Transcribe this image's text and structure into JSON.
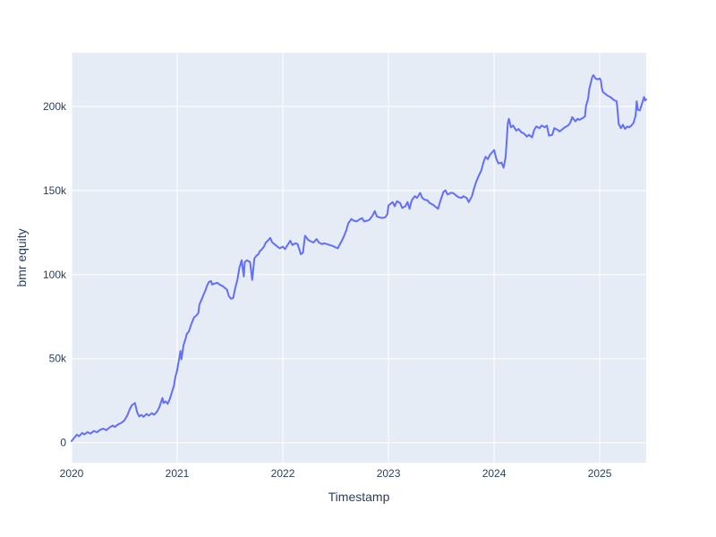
{
  "chart_data": {
    "type": "line",
    "title": "",
    "xlabel": "Timestamp",
    "ylabel": "bmr equity",
    "legend": "none",
    "grid": true,
    "plot_bg_color": "#e5ecf6",
    "paper_color": "#ffffff",
    "grid_color": "#ffffff",
    "text_color": "#2a3f5f",
    "line_color": "#636efa",
    "x_range": [
      2020.0,
      2025.44
    ],
    "y_range": [
      -11900,
      231900
    ],
    "x_ticks": [
      {
        "v": 2020,
        "label": "2020"
      },
      {
        "v": 2021,
        "label": "2021"
      },
      {
        "v": 2022,
        "label": "2022"
      },
      {
        "v": 2023,
        "label": "2023"
      },
      {
        "v": 2024,
        "label": "2024"
      },
      {
        "v": 2025,
        "label": "2025"
      }
    ],
    "y_ticks": [
      {
        "v": 0,
        "label": "0"
      },
      {
        "v": 50000,
        "label": "50k"
      },
      {
        "v": 100000,
        "label": "100k"
      },
      {
        "v": 150000,
        "label": "150k"
      },
      {
        "v": 200000,
        "label": "200k"
      }
    ],
    "series": [
      {
        "name": "bmr equity",
        "points": [
          [
            2020.0,
            1000
          ],
          [
            2020.02,
            2600
          ],
          [
            2020.05,
            4800
          ],
          [
            2020.07,
            3800
          ],
          [
            2020.1,
            5800
          ],
          [
            2020.12,
            4900
          ],
          [
            2020.15,
            6300
          ],
          [
            2020.18,
            5400
          ],
          [
            2020.21,
            7000
          ],
          [
            2020.24,
            6200
          ],
          [
            2020.27,
            7700
          ],
          [
            2020.3,
            8400
          ],
          [
            2020.33,
            7500
          ],
          [
            2020.36,
            9100
          ],
          [
            2020.39,
            10200
          ],
          [
            2020.41,
            9400
          ],
          [
            2020.44,
            10900
          ],
          [
            2020.47,
            11800
          ],
          [
            2020.5,
            13300
          ],
          [
            2020.53,
            16500
          ],
          [
            2020.55,
            19800
          ],
          [
            2020.57,
            22300
          ],
          [
            2020.6,
            23600
          ],
          [
            2020.62,
            18100
          ],
          [
            2020.64,
            15600
          ],
          [
            2020.66,
            16600
          ],
          [
            2020.68,
            15400
          ],
          [
            2020.71,
            17100
          ],
          [
            2020.73,
            16100
          ],
          [
            2020.76,
            17600
          ],
          [
            2020.78,
            16600
          ],
          [
            2020.81,
            18600
          ],
          [
            2020.83,
            21100
          ],
          [
            2020.86,
            26600
          ],
          [
            2020.87,
            23600
          ],
          [
            2020.89,
            24600
          ],
          [
            2020.91,
            23100
          ],
          [
            2020.93,
            26100
          ],
          [
            2020.95,
            30100
          ],
          [
            2020.97,
            34200
          ],
          [
            2020.98,
            38600
          ],
          [
            2021.0,
            43100
          ],
          [
            2021.01,
            47100
          ],
          [
            2021.02,
            50600
          ],
          [
            2021.03,
            54600
          ],
          [
            2021.04,
            49600
          ],
          [
            2021.06,
            58100
          ],
          [
            2021.08,
            62100
          ],
          [
            2021.09,
            64600
          ],
          [
            2021.11,
            66100
          ],
          [
            2021.13,
            70100
          ],
          [
            2021.15,
            73100
          ],
          [
            2021.16,
            74600
          ],
          [
            2021.18,
            75600
          ],
          [
            2021.2,
            77100
          ],
          [
            2021.21,
            82100
          ],
          [
            2021.23,
            85100
          ],
          [
            2021.25,
            88100
          ],
          [
            2021.27,
            91100
          ],
          [
            2021.28,
            93100
          ],
          [
            2021.3,
            95600
          ],
          [
            2021.32,
            96100
          ],
          [
            2021.33,
            94100
          ],
          [
            2021.35,
            94600
          ],
          [
            2021.38,
            95100
          ],
          [
            2021.4,
            94100
          ],
          [
            2021.43,
            93100
          ],
          [
            2021.45,
            92100
          ],
          [
            2021.47,
            91100
          ],
          [
            2021.49,
            87100
          ],
          [
            2021.51,
            85600
          ],
          [
            2021.53,
            86100
          ],
          [
            2021.55,
            92100
          ],
          [
            2021.57,
            97100
          ],
          [
            2021.59,
            104300
          ],
          [
            2021.61,
            108500
          ],
          [
            2021.63,
            98900
          ],
          [
            2021.64,
            107400
          ],
          [
            2021.66,
            108500
          ],
          [
            2021.69,
            107400
          ],
          [
            2021.71,
            96800
          ],
          [
            2021.73,
            109600
          ],
          [
            2021.75,
            111200
          ],
          [
            2021.77,
            112200
          ],
          [
            2021.78,
            113800
          ],
          [
            2021.8,
            114900
          ],
          [
            2021.82,
            116500
          ],
          [
            2021.84,
            119100
          ],
          [
            2021.86,
            120200
          ],
          [
            2021.88,
            121800
          ],
          [
            2021.9,
            119100
          ],
          [
            2021.92,
            118100
          ],
          [
            2021.94,
            117100
          ],
          [
            2021.97,
            115600
          ],
          [
            2022.0,
            116600
          ],
          [
            2022.02,
            115100
          ],
          [
            2022.04,
            117100
          ],
          [
            2022.07,
            120100
          ],
          [
            2022.09,
            117600
          ],
          [
            2022.12,
            118600
          ],
          [
            2022.14,
            118100
          ],
          [
            2022.17,
            112100
          ],
          [
            2022.19,
            113100
          ],
          [
            2022.21,
            123100
          ],
          [
            2022.24,
            120600
          ],
          [
            2022.27,
            119600
          ],
          [
            2022.29,
            119100
          ],
          [
            2022.32,
            121100
          ],
          [
            2022.34,
            119100
          ],
          [
            2022.37,
            118100
          ],
          [
            2022.39,
            118600
          ],
          [
            2022.42,
            118100
          ],
          [
            2022.44,
            117600
          ],
          [
            2022.47,
            117100
          ],
          [
            2022.5,
            116100
          ],
          [
            2022.52,
            115600
          ],
          [
            2022.54,
            118100
          ],
          [
            2022.56,
            120300
          ],
          [
            2022.58,
            123100
          ],
          [
            2022.6,
            126100
          ],
          [
            2022.62,
            130600
          ],
          [
            2022.65,
            133100
          ],
          [
            2022.67,
            132100
          ],
          [
            2022.7,
            131600
          ],
          [
            2022.72,
            132600
          ],
          [
            2022.75,
            133600
          ],
          [
            2022.77,
            131600
          ],
          [
            2022.8,
            132100
          ],
          [
            2022.82,
            132600
          ],
          [
            2022.85,
            135100
          ],
          [
            2022.87,
            137800
          ],
          [
            2022.89,
            134600
          ],
          [
            2022.91,
            134100
          ],
          [
            2022.94,
            133600
          ],
          [
            2022.97,
            134100
          ],
          [
            2022.99,
            136000
          ],
          [
            2023.0,
            141000
          ],
          [
            2023.01,
            141600
          ],
          [
            2023.03,
            142600
          ],
          [
            2023.04,
            143100
          ],
          [
            2023.06,
            140600
          ],
          [
            2023.08,
            143600
          ],
          [
            2023.11,
            142600
          ],
          [
            2023.13,
            139600
          ],
          [
            2023.16,
            140600
          ],
          [
            2023.18,
            143100
          ],
          [
            2023.2,
            139100
          ],
          [
            2023.22,
            144100
          ],
          [
            2023.25,
            146600
          ],
          [
            2023.27,
            145600
          ],
          [
            2023.3,
            148600
          ],
          [
            2023.32,
            145600
          ],
          [
            2023.34,
            144600
          ],
          [
            2023.37,
            144100
          ],
          [
            2023.39,
            142600
          ],
          [
            2023.42,
            141600
          ],
          [
            2023.44,
            140600
          ],
          [
            2023.47,
            139100
          ],
          [
            2023.49,
            143600
          ],
          [
            2023.52,
            149100
          ],
          [
            2023.54,
            150100
          ],
          [
            2023.56,
            147600
          ],
          [
            2023.59,
            148600
          ],
          [
            2023.61,
            148600
          ],
          [
            2023.64,
            147100
          ],
          [
            2023.66,
            146100
          ],
          [
            2023.69,
            145600
          ],
          [
            2023.71,
            146600
          ],
          [
            2023.74,
            145600
          ],
          [
            2023.76,
            143100
          ],
          [
            2023.79,
            146600
          ],
          [
            2023.81,
            151100
          ],
          [
            2023.83,
            155100
          ],
          [
            2023.85,
            158100
          ],
          [
            2023.88,
            162100
          ],
          [
            2023.9,
            167100
          ],
          [
            2023.92,
            170100
          ],
          [
            2023.94,
            168600
          ],
          [
            2023.96,
            171100
          ],
          [
            2023.98,
            172600
          ],
          [
            2024.0,
            174100
          ],
          [
            2024.02,
            169100
          ],
          [
            2024.04,
            166100
          ],
          [
            2024.07,
            166600
          ],
          [
            2024.09,
            163600
          ],
          [
            2024.11,
            170100
          ],
          [
            2024.12,
            180100
          ],
          [
            2024.13,
            190100
          ],
          [
            2024.14,
            192600
          ],
          [
            2024.16,
            187600
          ],
          [
            2024.18,
            188600
          ],
          [
            2024.21,
            185600
          ],
          [
            2024.23,
            186600
          ],
          [
            2024.26,
            184600
          ],
          [
            2024.28,
            184100
          ],
          [
            2024.31,
            182100
          ],
          [
            2024.33,
            183100
          ],
          [
            2024.36,
            181600
          ],
          [
            2024.38,
            186100
          ],
          [
            2024.4,
            188100
          ],
          [
            2024.43,
            187100
          ],
          [
            2024.45,
            188600
          ],
          [
            2024.48,
            187600
          ],
          [
            2024.5,
            188600
          ],
          [
            2024.52,
            182600
          ],
          [
            2024.55,
            183100
          ],
          [
            2024.57,
            187100
          ],
          [
            2024.6,
            186100
          ],
          [
            2024.62,
            185100
          ],
          [
            2024.65,
            186600
          ],
          [
            2024.67,
            187600
          ],
          [
            2024.7,
            188600
          ],
          [
            2024.72,
            190100
          ],
          [
            2024.74,
            193600
          ],
          [
            2024.77,
            191100
          ],
          [
            2024.79,
            192600
          ],
          [
            2024.81,
            192100
          ],
          [
            2024.84,
            193100
          ],
          [
            2024.86,
            194100
          ],
          [
            2024.87,
            200100
          ],
          [
            2024.89,
            204600
          ],
          [
            2024.9,
            210100
          ],
          [
            2024.92,
            215100
          ],
          [
            2024.93,
            217600
          ],
          [
            2024.94,
            218600
          ],
          [
            2024.96,
            216600
          ],
          [
            2024.98,
            216100
          ],
          [
            2025.0,
            216600
          ],
          [
            2025.01,
            215600
          ],
          [
            2025.02,
            211000
          ],
          [
            2025.03,
            208600
          ],
          [
            2025.05,
            207600
          ],
          [
            2025.07,
            206600
          ],
          [
            2025.1,
            205600
          ],
          [
            2025.12,
            204600
          ],
          [
            2025.14,
            203600
          ],
          [
            2025.16,
            203100
          ],
          [
            2025.17,
            197100
          ],
          [
            2025.18,
            189600
          ],
          [
            2025.2,
            187100
          ],
          [
            2025.22,
            189100
          ],
          [
            2025.24,
            186600
          ],
          [
            2025.26,
            188100
          ],
          [
            2025.28,
            187600
          ],
          [
            2025.3,
            188600
          ],
          [
            2025.32,
            190100
          ],
          [
            2025.34,
            194600
          ],
          [
            2025.35,
            203100
          ],
          [
            2025.36,
            198100
          ],
          [
            2025.38,
            197600
          ],
          [
            2025.4,
            201600
          ],
          [
            2025.42,
            205600
          ],
          [
            2025.43,
            203600
          ],
          [
            2025.44,
            204100
          ]
        ]
      }
    ]
  }
}
